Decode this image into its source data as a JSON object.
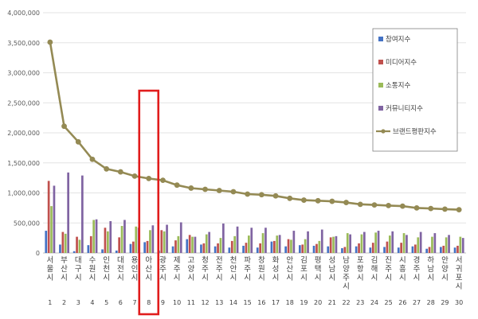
{
  "chart_data": {
    "type": "bar",
    "yticks": [
      "0",
      "500,000",
      "1,000,000",
      "1,500,000",
      "2,000,000",
      "2,500,000",
      "3,000,000",
      "3,500,000",
      "4,000,000"
    ],
    "ylim": [
      0,
      4000000
    ],
    "grid": true,
    "legend_position": "right",
    "categories": [
      "서울시",
      "부산시",
      "대구시",
      "수원시",
      "인천시",
      "대전시",
      "용인시",
      "아산시",
      "광주시",
      "제주시",
      "고양시",
      "청주시",
      "전주시",
      "천안시",
      "파주시",
      "창원시",
      "화성시",
      "안산시",
      "김포시",
      "평택시",
      "성남시",
      "남양주시",
      "포항시",
      "김해시",
      "진주시",
      "시흥시",
      "경주시",
      "하남시",
      "안양시",
      "서귀포시"
    ],
    "index_labels": [
      "1",
      "2",
      "3",
      "4",
      "5",
      "6",
      "7",
      "8",
      "9",
      "10",
      "11",
      "12",
      "13",
      "14",
      "15",
      "16",
      "17",
      "18",
      "19",
      "20",
      "21",
      "22",
      "23",
      "24",
      "25",
      "26",
      "27",
      "28",
      "29",
      "30"
    ],
    "series": [
      {
        "name": "참여지수",
        "color": "#4472C4",
        "kind": "bar",
        "values": [
          370000,
          140000,
          30000,
          130000,
          60000,
          40000,
          150000,
          180000,
          40000,
          110000,
          230000,
          140000,
          110000,
          90000,
          120000,
          90000,
          190000,
          110000,
          130000,
          120000,
          110000,
          80000,
          110000,
          90000,
          100000,
          90000,
          110000,
          70000,
          100000,
          90000
        ]
      },
      {
        "name": "미디어지수",
        "color": "#C0504D",
        "kind": "bar",
        "values": [
          1200000,
          350000,
          270000,
          280000,
          420000,
          260000,
          190000,
          200000,
          380000,
          210000,
          300000,
          160000,
          160000,
          200000,
          170000,
          160000,
          200000,
          230000,
          140000,
          150000,
          260000,
          100000,
          160000,
          170000,
          190000,
          170000,
          140000,
          100000,
          120000,
          120000
        ]
      },
      {
        "name": "소통지수",
        "color": "#9BBB59",
        "kind": "bar",
        "values": [
          780000,
          320000,
          220000,
          550000,
          360000,
          450000,
          440000,
          380000,
          360000,
          280000,
          270000,
          310000,
          250000,
          280000,
          290000,
          330000,
          290000,
          220000,
          230000,
          200000,
          270000,
          330000,
          310000,
          340000,
          290000,
          330000,
          260000,
          270000,
          260000,
          270000
        ]
      },
      {
        "name": "커뮤니티지수",
        "color": "#8064A2",
        "kind": "bar",
        "values": [
          1120000,
          1340000,
          1290000,
          560000,
          530000,
          550000,
          420000,
          460000,
          470000,
          510000,
          270000,
          350000,
          490000,
          440000,
          420000,
          420000,
          300000,
          370000,
          360000,
          390000,
          280000,
          310000,
          350000,
          370000,
          360000,
          300000,
          350000,
          330000,
          300000,
          250000
        ]
      },
      {
        "name": "브랜드평판지수",
        "color": "#948A54",
        "kind": "line",
        "values": [
          3510000,
          2110000,
          1850000,
          1560000,
          1400000,
          1350000,
          1280000,
          1240000,
          1210000,
          1130000,
          1080000,
          1060000,
          1040000,
          1020000,
          980000,
          970000,
          950000,
          910000,
          880000,
          870000,
          860000,
          840000,
          810000,
          800000,
          790000,
          780000,
          750000,
          740000,
          730000,
          720000
        ]
      }
    ],
    "highlight_index": 7,
    "highlight_color": "#E11C1C"
  }
}
